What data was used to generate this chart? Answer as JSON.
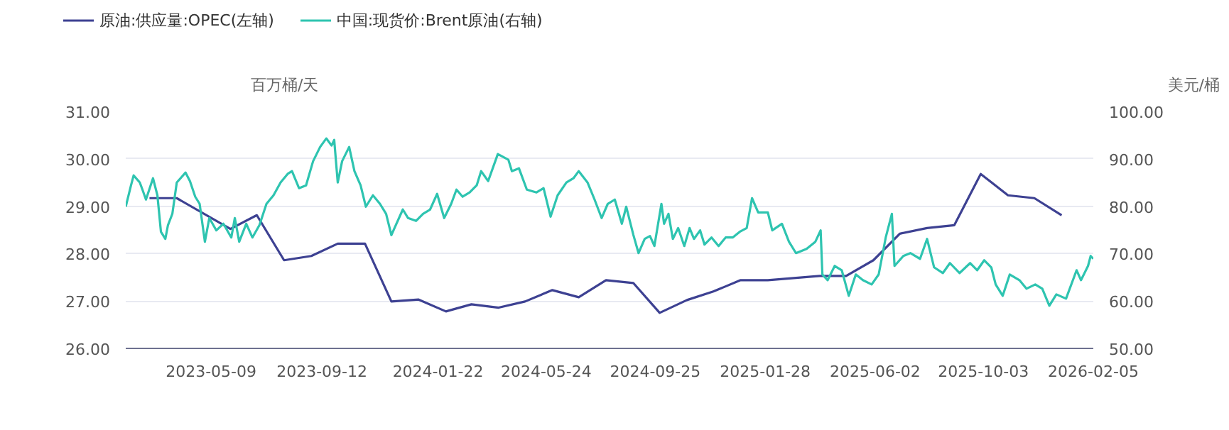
{
  "chart_data": {
    "type": "line",
    "ylabel": "百万桶/天",
    "y2label": "美元/桶",
    "xlim": [
      "2023-02-01",
      "2026-02-05"
    ],
    "xticks": [
      "2023-05-09",
      "2023-09-12",
      "2024-01-22",
      "2024-05-24",
      "2024-09-25",
      "2025-01-28",
      "2025-06-02",
      "2025-10-03",
      "2026-02-05"
    ],
    "ylim": [
      26,
      31
    ],
    "yticks": [
      {
        "value": 26,
        "label": "26.00"
      },
      {
        "value": 27,
        "label": "27.00"
      },
      {
        "value": 28,
        "label": "28.00"
      },
      {
        "value": 29,
        "label": "29.00"
      },
      {
        "value": 30,
        "label": "30.00"
      },
      {
        "value": 31,
        "label": "31.00"
      }
    ],
    "y2lim": [
      50,
      100
    ],
    "y2ticks": [
      {
        "value": 50,
        "label": "50.00"
      },
      {
        "value": 60,
        "label": "60.00"
      },
      {
        "value": 70,
        "label": "70.00"
      },
      {
        "value": 80,
        "label": "80.00"
      },
      {
        "value": 90,
        "label": "90.00"
      },
      {
        "value": 100,
        "label": "100.00"
      }
    ],
    "grid": "y",
    "legend": "top left",
    "series": [
      {
        "name": "原油:供应量:OPEC(左轴)",
        "color": "#3d4192",
        "axis": "y",
        "x": [
          "2023-02-28",
          "2023-03-31",
          "2023-05-31",
          "2023-06-30",
          "2023-07-31",
          "2023-08-31",
          "2023-09-30",
          "2023-10-31",
          "2023-11-30",
          "2023-12-31",
          "2024-01-31",
          "2024-02-29",
          "2024-03-31",
          "2024-04-30",
          "2024-05-31",
          "2024-06-30",
          "2024-07-31",
          "2024-08-31",
          "2024-09-30",
          "2024-10-31",
          "2024-11-30",
          "2024-12-31",
          "2025-01-31",
          "2025-03-31",
          "2025-04-30",
          "2025-05-31",
          "2025-06-30",
          "2025-07-31",
          "2025-08-31",
          "2025-09-30",
          "2025-10-31",
          "2025-11-30",
          "2025-12-31"
        ],
        "values": [
          29.17,
          29.17,
          28.52,
          28.81,
          27.86,
          27.95,
          28.21,
          28.21,
          26.99,
          27.03,
          26.78,
          26.93,
          26.86,
          26.99,
          27.23,
          27.08,
          27.44,
          27.38,
          26.75,
          27.02,
          27.2,
          27.44,
          27.44,
          27.53,
          27.53,
          27.86,
          28.42,
          28.54,
          28.6,
          29.68,
          29.23,
          29.17,
          28.81
        ]
      },
      {
        "name": "中国:现货价:Brent原油(右轴)",
        "color": "#2ec4b0",
        "axis": "y2",
        "x": [
          "2023-02-01",
          "2023-02-07",
          "2023-02-10",
          "2023-02-17",
          "2023-02-20",
          "2023-02-24",
          "2023-03-04",
          "2023-03-09",
          "2023-03-13",
          "2023-03-18",
          "2023-03-21",
          "2023-03-26",
          "2023-03-31",
          "2023-04-10",
          "2023-04-15",
          "2023-04-21",
          "2023-04-26",
          "2023-05-02",
          "2023-05-07",
          "2023-05-15",
          "2023-05-23",
          "2023-06-01",
          "2023-06-05",
          "2023-06-10",
          "2023-06-18",
          "2023-06-25",
          "2023-07-03",
          "2023-07-11",
          "2023-07-19",
          "2023-07-27",
          "2023-08-04",
          "2023-08-09",
          "2023-08-17",
          "2023-08-25",
          "2023-09-02",
          "2023-09-10",
          "2023-09-17",
          "2023-09-23",
          "2023-09-26",
          "2023-09-30",
          "2023-10-05",
          "2023-10-13",
          "2023-10-19",
          "2023-10-26",
          "2023-11-01",
          "2023-11-09",
          "2023-11-17",
          "2023-11-24",
          "2023-11-30",
          "2023-12-05",
          "2023-12-13",
          "2023-12-19",
          "2023-12-28",
          "2024-01-05",
          "2024-01-13",
          "2024-01-21",
          "2024-01-29",
          "2024-02-06",
          "2024-02-12",
          "2024-02-19",
          "2024-02-27",
          "2024-03-06",
          "2024-03-11",
          "2024-03-19",
          "2024-03-30",
          "2024-04-11",
          "2024-04-15",
          "2024-04-23",
          "2024-05-02",
          "2024-05-13",
          "2024-05-21",
          "2024-05-29",
          "2024-06-06",
          "2024-06-16",
          "2024-06-24",
          "2024-06-30",
          "2024-07-10",
          "2024-07-18",
          "2024-07-26",
          "2024-08-02",
          "2024-08-10",
          "2024-08-18",
          "2024-08-23",
          "2024-08-31",
          "2024-09-06",
          "2024-09-13",
          "2024-09-19",
          "2024-09-24",
          "2024-10-02",
          "2024-10-05",
          "2024-10-10",
          "2024-10-15",
          "2024-10-21",
          "2024-10-28",
          "2024-11-03",
          "2024-11-08",
          "2024-11-15",
          "2024-11-20",
          "2024-11-28",
          "2024-12-06",
          "2024-12-14",
          "2024-12-22",
          "2024-12-30",
          "2025-01-07",
          "2025-01-13",
          "2025-01-20",
          "2025-01-31",
          "2025-02-05",
          "2025-02-16",
          "2025-02-24",
          "2025-03-04",
          "2025-03-16",
          "2025-03-26",
          "2025-04-01",
          "2025-04-03",
          "2025-04-09",
          "2025-04-17",
          "2025-04-25",
          "2025-05-03",
          "2025-05-11",
          "2025-05-19",
          "2025-05-29",
          "2025-06-06",
          "2025-06-14",
          "2025-06-21",
          "2025-06-24",
          "2025-07-04",
          "2025-07-12",
          "2025-07-23",
          "2025-07-31",
          "2025-08-08",
          "2025-08-18",
          "2025-08-26",
          "2025-09-06",
          "2025-09-18",
          "2025-09-26",
          "2025-10-04",
          "2025-10-12",
          "2025-10-17",
          "2025-10-25",
          "2025-11-02",
          "2025-11-13",
          "2025-11-21",
          "2025-12-01",
          "2025-12-09",
          "2025-12-17",
          "2025-12-25",
          "2026-01-05",
          "2026-01-17",
          "2026-01-22",
          "2026-01-30",
          "2026-02-02",
          "2026-02-05"
        ],
        "values": [
          79.9,
          84.4,
          86.5,
          85.0,
          83.5,
          81.4,
          85.9,
          82.3,
          74.6,
          73.1,
          76.0,
          78.4,
          85.0,
          87.1,
          85.3,
          82.0,
          80.5,
          72.5,
          77.5,
          74.9,
          76.3,
          73.4,
          77.5,
          72.5,
          76.3,
          73.4,
          76.0,
          80.5,
          82.3,
          85.0,
          86.8,
          87.4,
          83.8,
          84.4,
          89.5,
          92.5,
          94.3,
          92.8,
          94.0,
          85.0,
          89.5,
          92.5,
          87.4,
          84.4,
          79.9,
          82.3,
          80.5,
          78.4,
          73.9,
          76.0,
          79.3,
          77.5,
          76.9,
          78.4,
          79.3,
          82.6,
          77.5,
          80.5,
          83.5,
          82.0,
          82.9,
          84.4,
          87.4,
          85.3,
          91.0,
          89.8,
          87.4,
          88.0,
          83.5,
          82.9,
          83.8,
          77.8,
          82.3,
          85.0,
          85.9,
          87.4,
          85.0,
          81.4,
          77.5,
          80.5,
          81.4,
          76.3,
          79.9,
          74.0,
          70.1,
          73.1,
          73.7,
          71.6,
          80.5,
          76.3,
          78.4,
          73.1,
          75.4,
          71.6,
          75.4,
          73.1,
          74.9,
          71.9,
          73.4,
          71.6,
          73.4,
          73.4,
          74.6,
          75.4,
          81.7,
          78.7,
          78.7,
          74.9,
          76.3,
          72.5,
          70.1,
          71.0,
          72.5,
          74.9,
          65.6,
          64.4,
          67.4,
          66.5,
          61.1,
          65.6,
          64.4,
          63.5,
          65.6,
          73.4,
          78.4,
          67.4,
          69.5,
          70.1,
          68.9,
          73.1,
          67.1,
          65.9,
          68.0,
          65.9,
          68.0,
          66.5,
          68.6,
          67.1,
          63.5,
          61.1,
          65.6,
          64.4,
          62.6,
          63.5,
          62.6,
          59.0,
          61.4,
          60.5,
          66.5,
          64.4,
          67.4,
          69.5,
          68.9
        ]
      }
    ]
  }
}
